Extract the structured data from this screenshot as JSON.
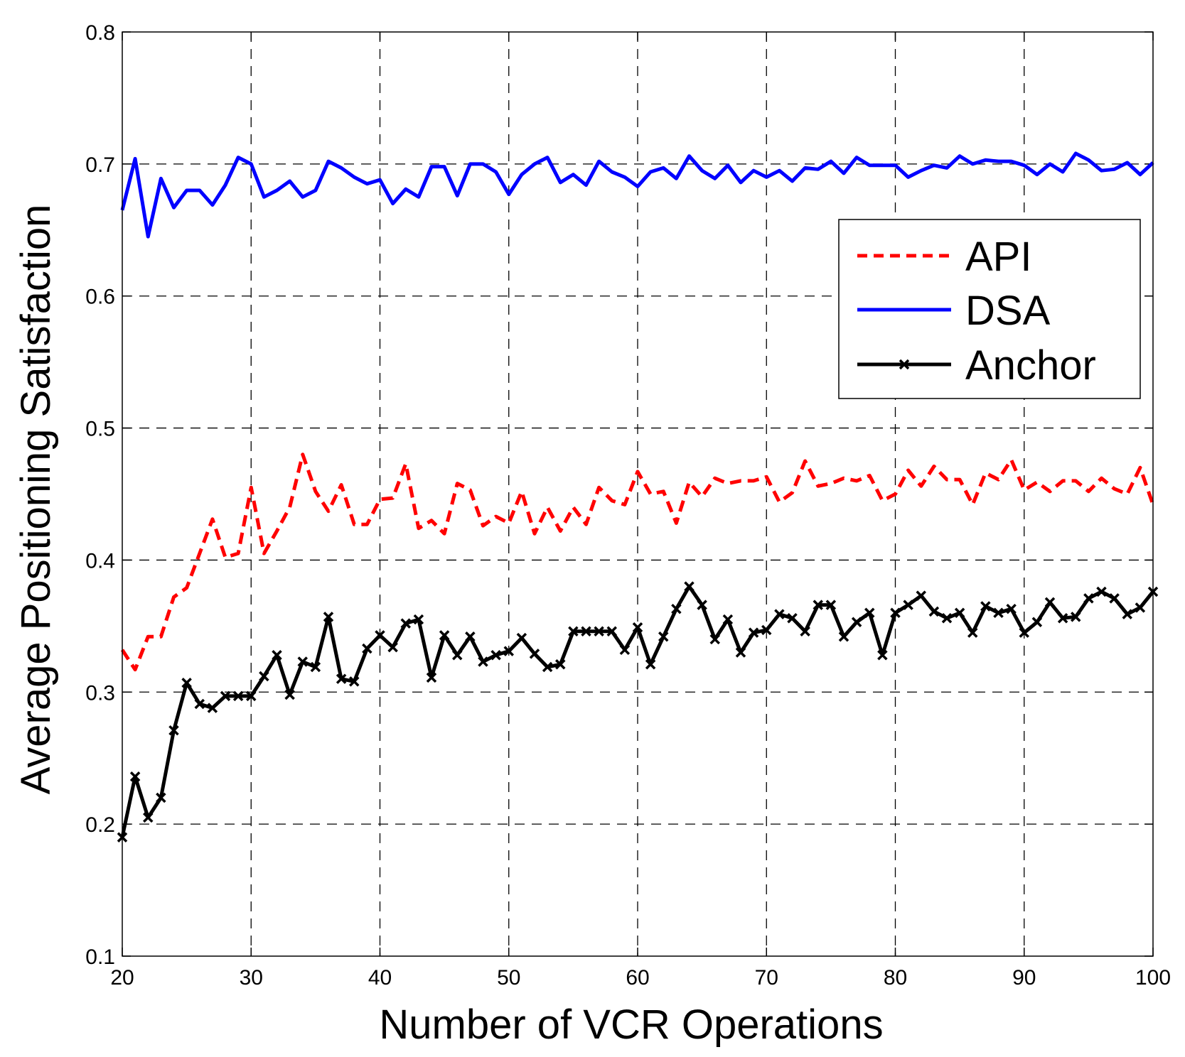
{
  "chart_data": {
    "type": "line",
    "title": "",
    "xlabel": "Number of VCR Operations",
    "ylabel": "Average Positioning Satisfaction",
    "xlim": [
      20,
      100
    ],
    "ylim": [
      0.1,
      0.8
    ],
    "xticks": [
      20,
      30,
      40,
      50,
      60,
      70,
      80,
      90,
      100
    ],
    "yticks": [
      0.1,
      0.2,
      0.3,
      0.4,
      0.5,
      0.6,
      0.7,
      0.8
    ],
    "xtick_labels": [
      "20",
      "30",
      "40",
      "50",
      "60",
      "70",
      "80",
      "90",
      "100"
    ],
    "ytick_labels": [
      "0.1",
      "0.2",
      "0.3",
      "0.4",
      "0.5",
      "0.6",
      "0.7",
      "0.8"
    ],
    "grid": true,
    "legend_position": "top-right",
    "x": [
      20,
      21,
      22,
      23,
      24,
      25,
      26,
      27,
      28,
      29,
      30,
      31,
      32,
      33,
      34,
      35,
      36,
      37,
      38,
      39,
      40,
      41,
      42,
      43,
      44,
      45,
      46,
      47,
      48,
      49,
      50,
      51,
      52,
      53,
      54,
      55,
      56,
      57,
      58,
      59,
      60,
      61,
      62,
      63,
      64,
      65,
      66,
      67,
      68,
      69,
      70,
      71,
      72,
      73,
      74,
      75,
      76,
      77,
      78,
      79,
      80,
      81,
      82,
      83,
      84,
      85,
      86,
      87,
      88,
      89,
      90,
      91,
      92,
      93,
      94,
      95,
      96,
      97,
      98,
      99,
      100
    ],
    "series": [
      {
        "name": "API",
        "color": "#ff0000",
        "style": "dashed",
        "values": [
          0.332,
          0.317,
          0.342,
          0.342,
          0.372,
          0.379,
          0.405,
          0.431,
          0.402,
          0.405,
          0.455,
          0.405,
          0.422,
          0.44,
          0.48,
          0.452,
          0.437,
          0.457,
          0.427,
          0.427,
          0.446,
          0.447,
          0.473,
          0.424,
          0.43,
          0.42,
          0.458,
          0.453,
          0.426,
          0.433,
          0.428,
          0.452,
          0.42,
          0.44,
          0.422,
          0.44,
          0.427,
          0.455,
          0.445,
          0.442,
          0.467,
          0.45,
          0.452,
          0.428,
          0.459,
          0.448,
          0.462,
          0.458,
          0.46,
          0.46,
          0.463,
          0.444,
          0.451,
          0.475,
          0.456,
          0.458,
          0.462,
          0.46,
          0.464,
          0.445,
          0.45,
          0.468,
          0.456,
          0.471,
          0.461,
          0.461,
          0.442,
          0.466,
          0.461,
          0.476,
          0.453,
          0.459,
          0.452,
          0.46,
          0.46,
          0.452,
          0.462,
          0.454,
          0.45,
          0.47,
          0.442
        ]
      },
      {
        "name": "DSA",
        "color": "#0000ff",
        "style": "solid",
        "values": [
          0.665,
          0.704,
          0.645,
          0.689,
          0.667,
          0.68,
          0.68,
          0.669,
          0.684,
          0.705,
          0.7,
          0.675,
          0.68,
          0.687,
          0.675,
          0.68,
          0.702,
          0.697,
          0.69,
          0.685,
          0.688,
          0.67,
          0.681,
          0.675,
          0.698,
          0.698,
          0.676,
          0.7,
          0.7,
          0.694,
          0.677,
          0.692,
          0.7,
          0.705,
          0.686,
          0.692,
          0.684,
          0.702,
          0.694,
          0.69,
          0.683,
          0.694,
          0.697,
          0.689,
          0.706,
          0.695,
          0.689,
          0.699,
          0.686,
          0.695,
          0.69,
          0.695,
          0.687,
          0.697,
          0.696,
          0.702,
          0.693,
          0.705,
          0.699,
          0.699,
          0.699,
          0.69,
          0.695,
          0.699,
          0.697,
          0.706,
          0.7,
          0.703,
          0.702,
          0.702,
          0.699,
          0.692,
          0.7,
          0.694,
          0.708,
          0.703,
          0.695,
          0.696,
          0.701,
          0.692,
          0.701
        ]
      },
      {
        "name": "Anchor",
        "color": "#000000",
        "style": "solid-marker-x",
        "values": [
          0.19,
          0.236,
          0.205,
          0.22,
          0.271,
          0.307,
          0.291,
          0.288,
          0.297,
          0.297,
          0.297,
          0.312,
          0.328,
          0.298,
          0.323,
          0.319,
          0.357,
          0.31,
          0.308,
          0.333,
          0.343,
          0.334,
          0.352,
          0.355,
          0.311,
          0.343,
          0.328,
          0.342,
          0.323,
          0.328,
          0.331,
          0.341,
          0.329,
          0.319,
          0.321,
          0.346,
          0.346,
          0.346,
          0.346,
          0.332,
          0.349,
          0.321,
          0.342,
          0.363,
          0.38,
          0.366,
          0.34,
          0.355,
          0.33,
          0.345,
          0.347,
          0.359,
          0.356,
          0.346,
          0.366,
          0.366,
          0.342,
          0.353,
          0.36,
          0.328,
          0.36,
          0.366,
          0.373,
          0.361,
          0.356,
          0.36,
          0.345,
          0.365,
          0.36,
          0.363,
          0.345,
          0.353,
          0.368,
          0.356,
          0.357,
          0.371,
          0.376,
          0.371,
          0.359,
          0.364,
          0.376
        ]
      }
    ]
  }
}
